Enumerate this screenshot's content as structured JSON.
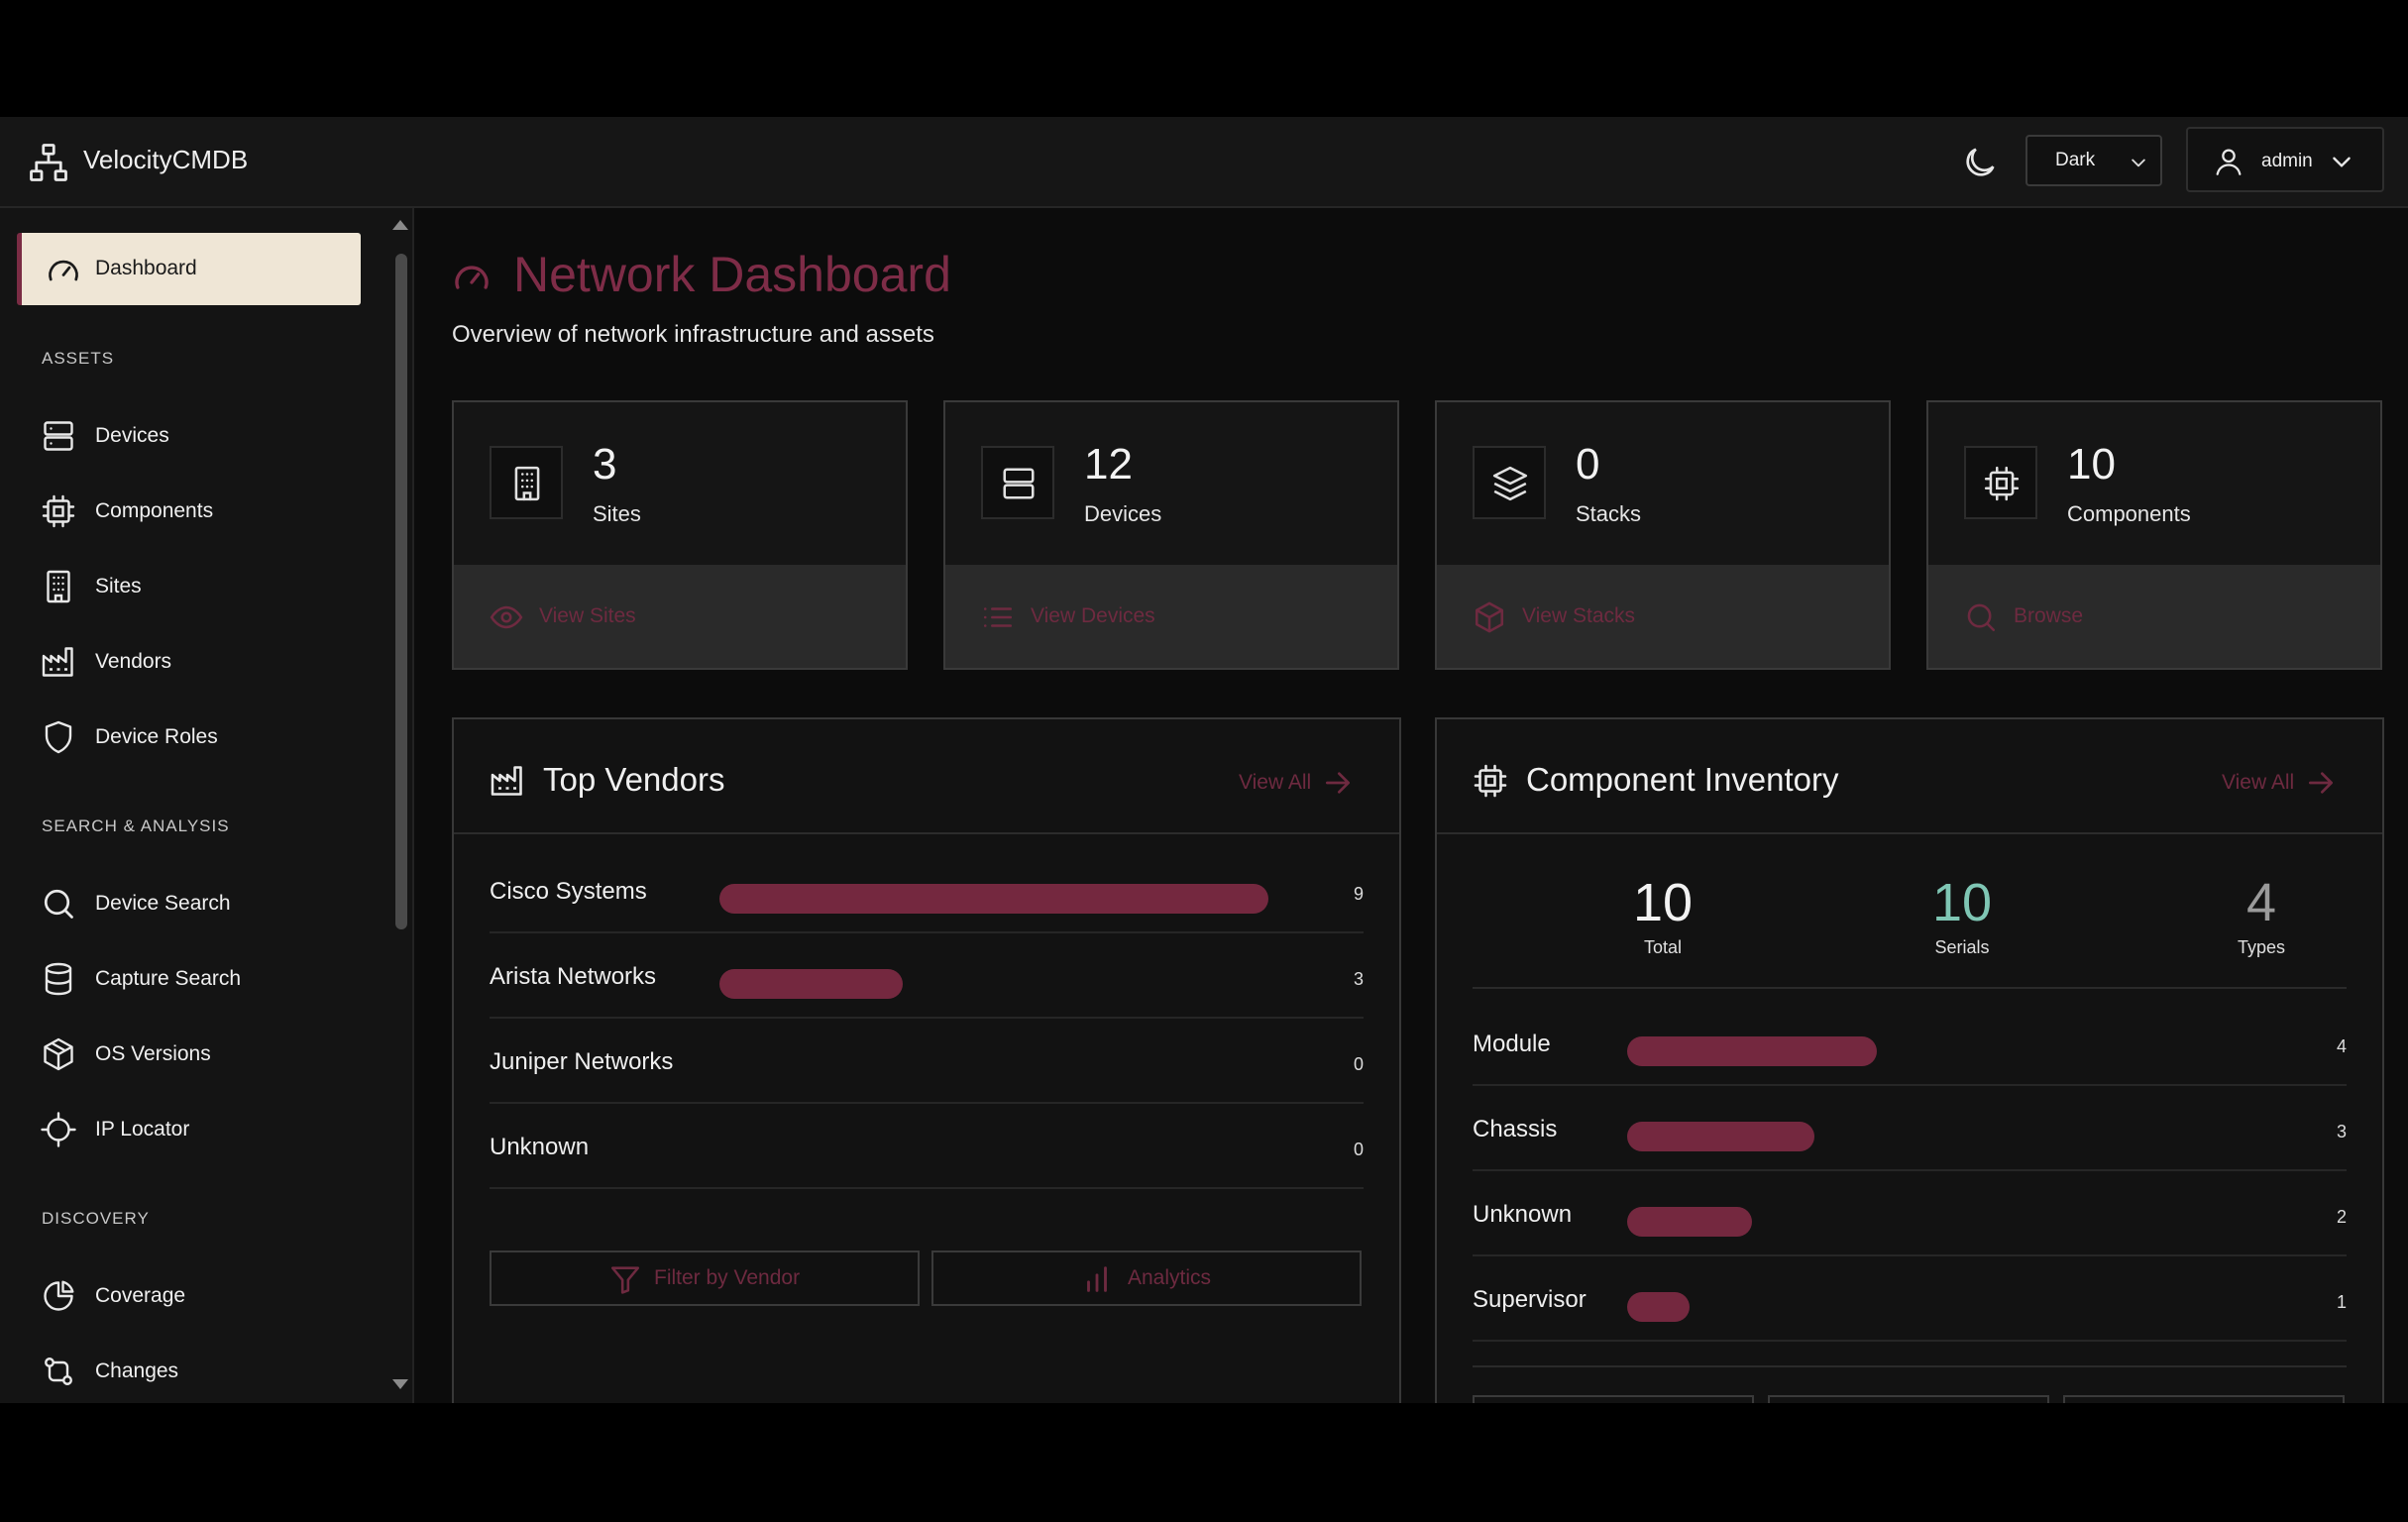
{
  "app": {
    "brand": "VelocityCMDB",
    "theme_value": "Dark",
    "user_name": "admin"
  },
  "sidebar": {
    "active": {
      "label": "Dashboard",
      "icon": "gauge-icon"
    },
    "sections": [
      {
        "title": "ASSETS",
        "items": [
          {
            "label": "Devices",
            "icon": "server-icon"
          },
          {
            "label": "Components",
            "icon": "chip-icon"
          },
          {
            "label": "Sites",
            "icon": "building-icon"
          },
          {
            "label": "Vendors",
            "icon": "factory-icon"
          },
          {
            "label": "Device Roles",
            "icon": "shield-icon"
          }
        ]
      },
      {
        "title": "SEARCH & ANALYSIS",
        "items": [
          {
            "label": "Device Search",
            "icon": "search-icon"
          },
          {
            "label": "Capture Search",
            "icon": "database-icon"
          },
          {
            "label": "OS Versions",
            "icon": "package-icon"
          },
          {
            "label": "IP Locator",
            "icon": "crosshair-icon"
          }
        ]
      },
      {
        "title": "DISCOVERY",
        "items": [
          {
            "label": "Coverage",
            "icon": "pie-icon"
          },
          {
            "label": "Changes",
            "icon": "git-compare-icon"
          }
        ]
      }
    ]
  },
  "page": {
    "title": "Network Dashboard",
    "subtitle": "Overview of network infrastructure and assets"
  },
  "stats": [
    {
      "value": "3",
      "label": "Sites",
      "link": "View Sites"
    },
    {
      "value": "12",
      "label": "Devices",
      "link": "View Devices"
    },
    {
      "value": "0",
      "label": "Stacks",
      "link": "View Stacks"
    },
    {
      "value": "10",
      "label": "Components",
      "link": "Browse"
    }
  ],
  "vendors": {
    "title": "Top Vendors",
    "view_all": "View All",
    "max": 9,
    "rows": [
      {
        "name": "Cisco Systems",
        "count": 9
      },
      {
        "name": "Arista Networks",
        "count": 3
      },
      {
        "name": "Juniper Networks",
        "count": 0
      },
      {
        "name": "Unknown",
        "count": 0
      }
    ],
    "buttons": [
      "Filter by Vendor",
      "Analytics"
    ]
  },
  "inventory": {
    "title": "Component Inventory",
    "view_all": "View All",
    "summary": [
      {
        "value": "10",
        "label": "Total"
      },
      {
        "value": "10",
        "label": "Serials"
      },
      {
        "value": "4",
        "label": "Types"
      }
    ],
    "max": 8,
    "rows": [
      {
        "name": "Module",
        "count": 4
      },
      {
        "name": "Chassis",
        "count": 3
      },
      {
        "name": "Unknown",
        "count": 2
      },
      {
        "name": "Supervisor",
        "count": 1
      }
    ]
  },
  "colors": {
    "accent": "#7e2c47",
    "bar": "#74283f",
    "teal": "#7fc6b4",
    "gray_num": "#9a9a9a"
  }
}
